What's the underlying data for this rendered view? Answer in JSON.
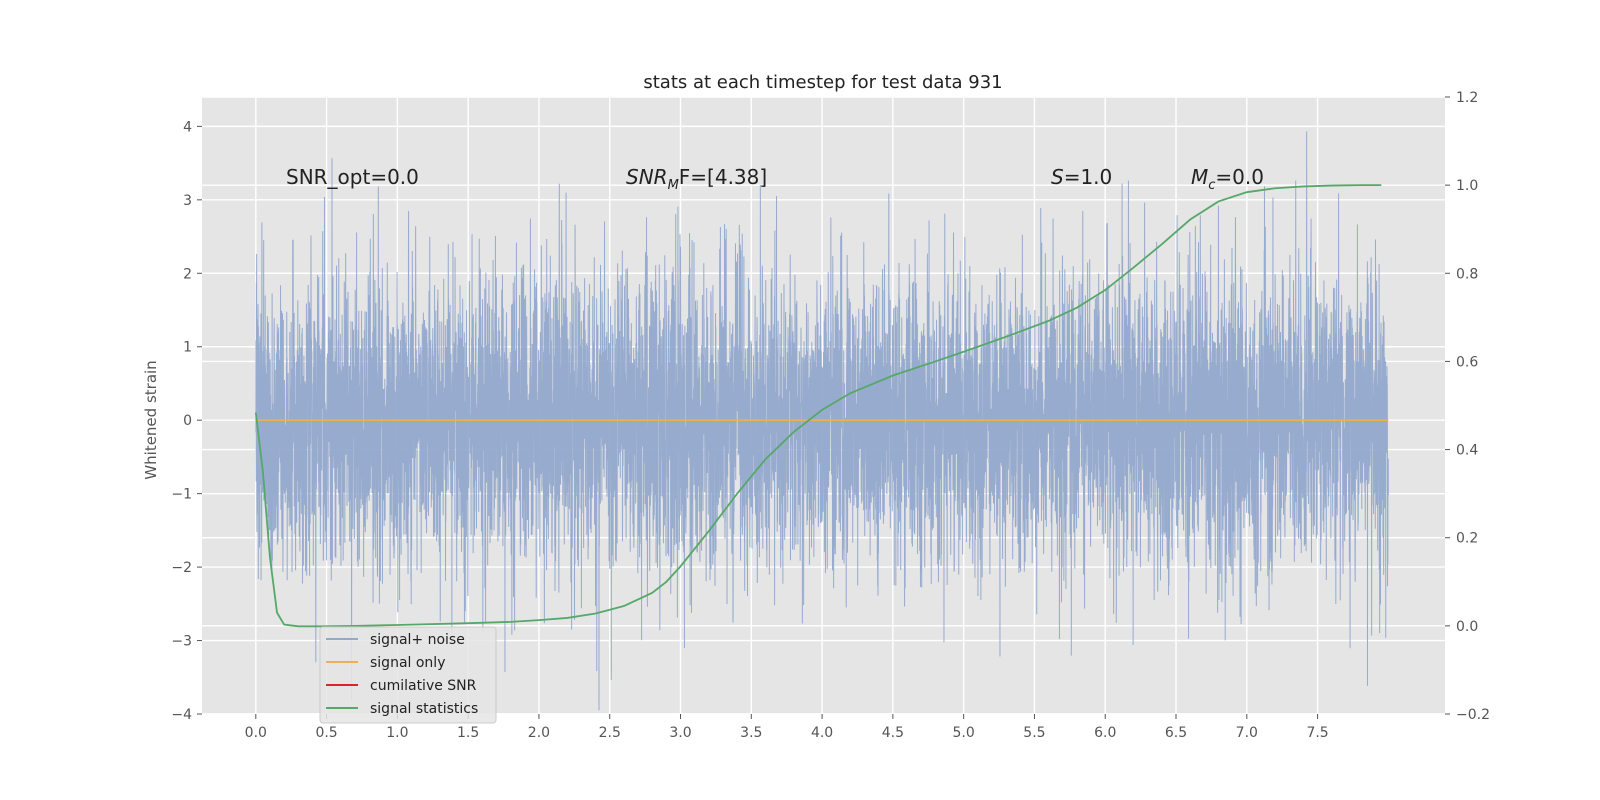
{
  "chart_data": {
    "type": "line",
    "title": "stats at each timestep for test data 931",
    "ylabel": "Whitened strain",
    "xlim": [
      -0.38,
      8.4
    ],
    "ylim": [
      -4,
      4.4
    ],
    "y2lim": [
      -0.2,
      1.2
    ],
    "x_ticks": [
      0.0,
      0.5,
      1.0,
      1.5,
      2.0,
      2.5,
      3.0,
      3.5,
      4.0,
      4.5,
      5.0,
      5.5,
      6.0,
      6.5,
      7.0,
      7.5
    ],
    "x_tick_labels": [
      "0.0",
      "0.5",
      "1.0",
      "1.5",
      "2.0",
      "2.5",
      "3.0",
      "3.5",
      "4.0",
      "4.5",
      "5.0",
      "5.5",
      "6.0",
      "6.5",
      "7.0",
      "7.5"
    ],
    "y_ticks": [
      -4,
      -3,
      -2,
      -1,
      0,
      1,
      2,
      3,
      4
    ],
    "y_tick_labels": [
      "−4",
      "−3",
      "−2",
      "−1",
      "0",
      "1",
      "2",
      "3",
      "4"
    ],
    "y2_ticks": [
      -0.2,
      0.0,
      0.2,
      0.4,
      0.6,
      0.8,
      1.0,
      1.2
    ],
    "y2_tick_labels": [
      "−0.2",
      "0.0",
      "0.2",
      "0.4",
      "0.6",
      "0.8",
      "1.0",
      "1.2"
    ],
    "grid": true,
    "legend_position": "lower-left",
    "annotations": {
      "snr_opt": "SNR_opt=0.0",
      "snr_mf_main": "SNR",
      "snr_mf_sub": "M",
      "snr_mf_rest": "F=[4.38]",
      "s_main": "S",
      "s_rest": "=1.0",
      "mc_main": "M",
      "mc_sub": "c",
      "mc_rest": "=0.0"
    },
    "series": [
      {
        "name": "signal+ noise",
        "color": "#92a8cc",
        "x_range": [
          0.0,
          8.0
        ],
        "samples": 8192,
        "std": 1.0,
        "seed": 931
      },
      {
        "name": "signal only",
        "color": "#e9b352",
        "x": [
          0.0,
          8.0
        ],
        "y": [
          0.0,
          0.0
        ]
      },
      {
        "name": "cumilative SNR",
        "color": "#d62728",
        "x": [],
        "y": []
      },
      {
        "name": "signal statistics",
        "color": "#55a868",
        "x": [
          0.0,
          0.05,
          0.1,
          0.15,
          0.2,
          0.3,
          0.45,
          0.7,
          1.0,
          1.5,
          1.8,
          2.0,
          2.2,
          2.4,
          2.6,
          2.8,
          2.9,
          3.0,
          3.2,
          3.4,
          3.6,
          3.8,
          4.0,
          4.2,
          4.5,
          4.8,
          5.0,
          5.3,
          5.6,
          5.8,
          6.0,
          6.2,
          6.4,
          6.6,
          6.8,
          7.0,
          7.2,
          7.4,
          7.6,
          7.8,
          7.95
        ],
        "y": [
          0.484,
          0.35,
          0.155,
          0.03,
          0.003,
          -0.001,
          -0.001,
          0.0,
          0.002,
          0.006,
          0.009,
          0.013,
          0.018,
          0.028,
          0.045,
          0.075,
          0.1,
          0.135,
          0.215,
          0.3,
          0.378,
          0.44,
          0.49,
          0.528,
          0.568,
          0.6,
          0.622,
          0.656,
          0.692,
          0.722,
          0.762,
          0.813,
          0.866,
          0.922,
          0.963,
          0.984,
          0.993,
          0.997,
          0.999,
          1.0,
          1.0
        ]
      }
    ]
  }
}
